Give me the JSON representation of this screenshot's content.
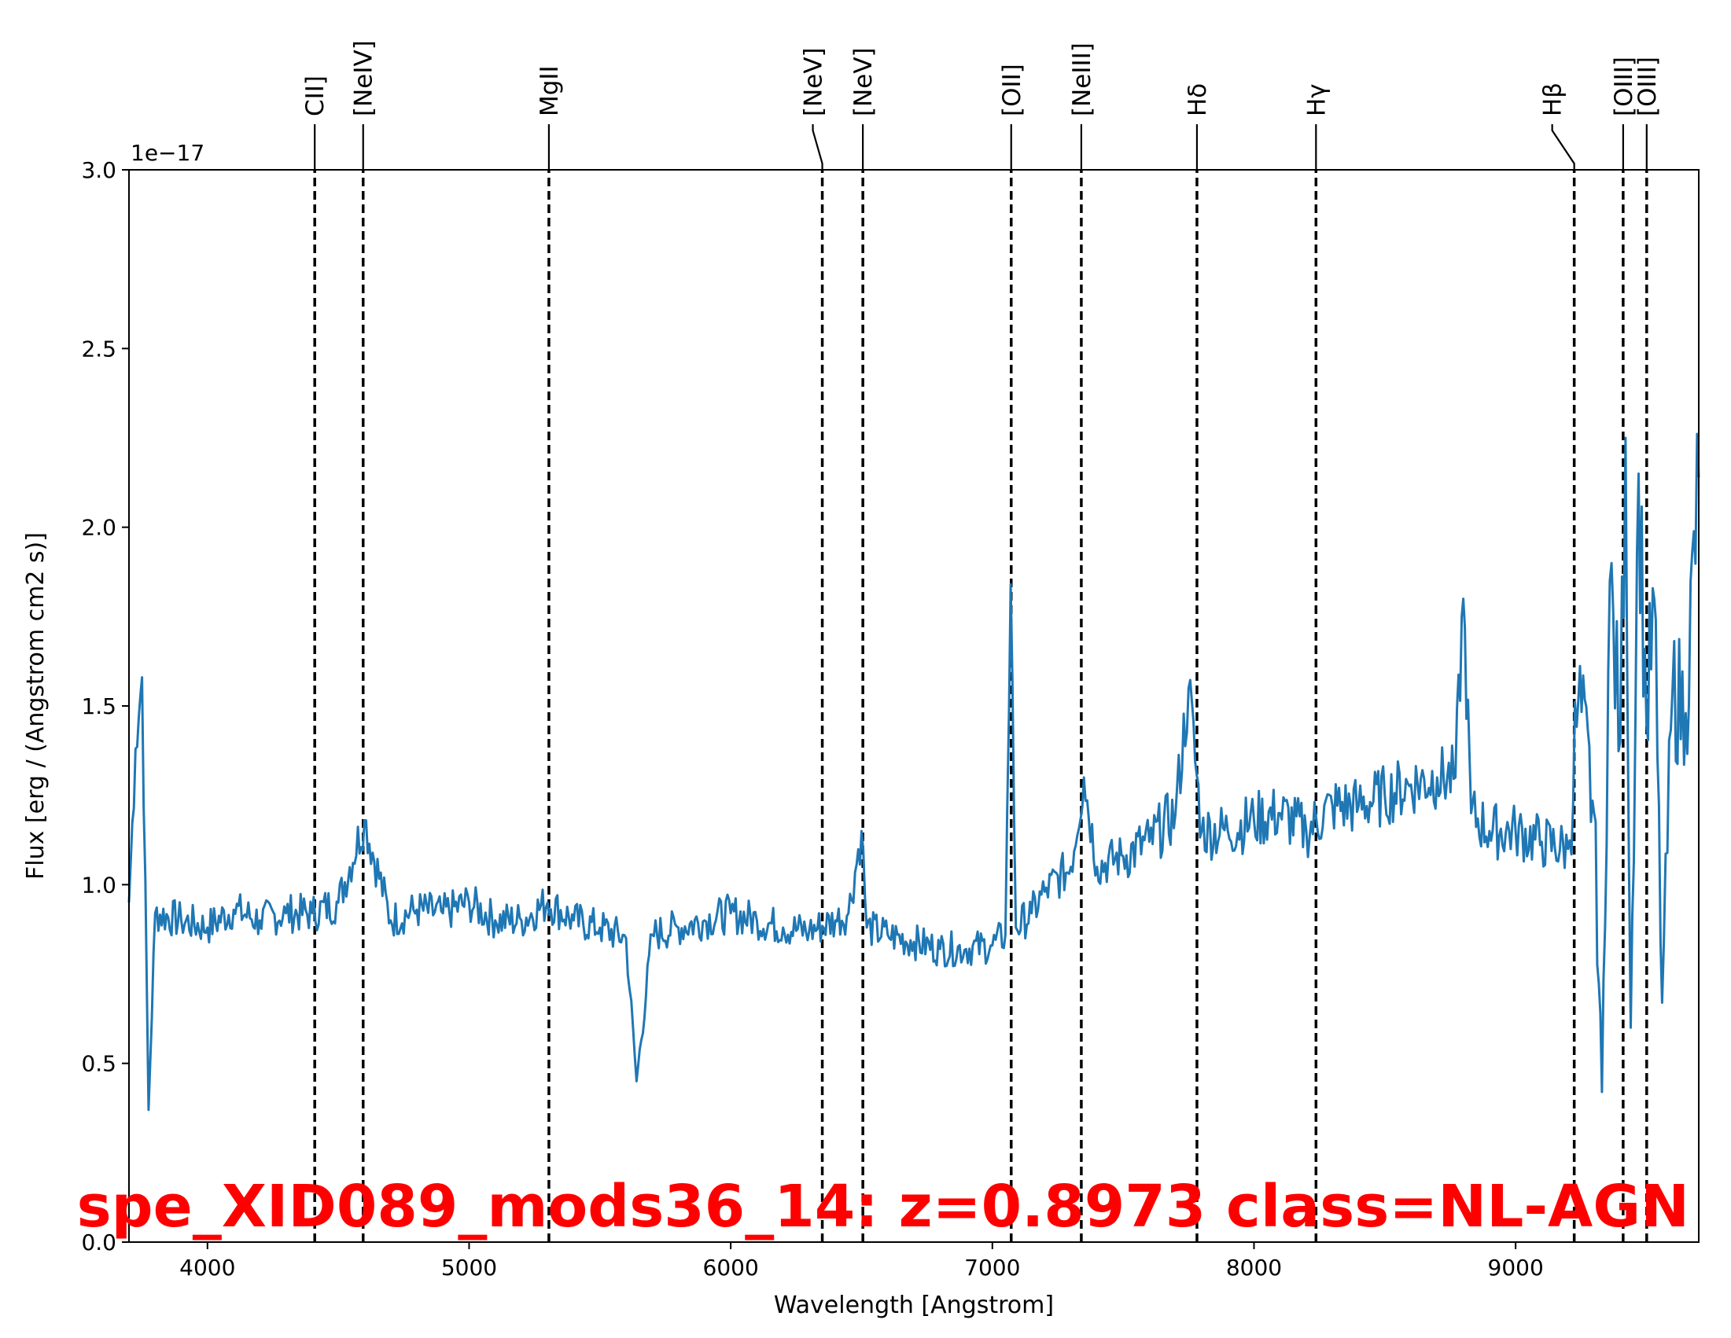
{
  "chart_data": {
    "type": "line",
    "title": "spe_XID089_mods36_14: z=0.8973 class=NL-AGN",
    "title_color": "#ff0000",
    "xlabel": "Wavelength [Angstrom]",
    "ylabel": "Flux [erg / (Angstrom cm2 s)]",
    "y_offset_label": "1e−17",
    "xlim": [
      3700,
      9700
    ],
    "ylim": [
      0.0,
      3.0
    ],
    "x_ticks": [
      4000,
      5000,
      6000,
      7000,
      8000,
      9000
    ],
    "x_tick_labels": [
      "4000",
      "5000",
      "6000",
      "7000",
      "8000",
      "9000"
    ],
    "y_ticks": [
      0.0,
      0.5,
      1.0,
      1.5,
      2.0,
      2.5,
      3.0
    ],
    "y_tick_labels": [
      "0.0",
      "0.5",
      "1.0",
      "1.5",
      "2.0",
      "2.5",
      "3.0"
    ],
    "grid": false,
    "series": [
      {
        "color": "#1f77b4",
        "x": [
          3700,
          3725,
          3750,
          3775,
          3800,
          3900,
          4000,
          4100,
          4200,
          4300,
          4400,
          4500,
          4600,
          4700,
          4800,
          4900,
          5000,
          5100,
          5200,
          5300,
          5400,
          5500,
          5600,
          5640,
          5700,
          5800,
          5900,
          6000,
          6100,
          6200,
          6300,
          6400,
          6450,
          6500,
          6520,
          6600,
          6700,
          6800,
          6900,
          7000,
          7050,
          7070,
          7090,
          7150,
          7200,
          7300,
          7350,
          7400,
          7500,
          7600,
          7700,
          7750,
          7800,
          7900,
          8000,
          8100,
          8200,
          8300,
          8400,
          8500,
          8600,
          8700,
          8770,
          8800,
          8830,
          8900,
          9000,
          9100,
          9200,
          9240,
          9300,
          9330,
          9360,
          9400,
          9420,
          9440,
          9470,
          9500,
          9530,
          9560,
          9600,
          9650,
          9700
        ],
        "y": [
          0.95,
          1.38,
          1.58,
          0.37,
          0.92,
          0.9,
          0.88,
          0.93,
          0.9,
          0.92,
          0.92,
          0.95,
          1.18,
          0.9,
          0.93,
          0.92,
          0.95,
          0.9,
          0.9,
          0.95,
          0.9,
          0.88,
          0.85,
          0.45,
          0.86,
          0.88,
          0.9,
          0.92,
          0.9,
          0.88,
          0.87,
          0.9,
          0.92,
          1.15,
          0.88,
          0.86,
          0.84,
          0.82,
          0.82,
          0.83,
          0.86,
          1.84,
          0.88,
          0.92,
          0.98,
          1.05,
          1.3,
          1.05,
          1.08,
          1.12,
          1.2,
          1.55,
          1.15,
          1.15,
          1.18,
          1.2,
          1.15,
          1.22,
          1.22,
          1.25,
          1.28,
          1.3,
          1.3,
          1.8,
          1.2,
          1.15,
          1.15,
          1.12,
          1.1,
          1.52,
          1.2,
          0.42,
          1.85,
          1.4,
          2.25,
          0.6,
          2.15,
          1.45,
          1.8,
          0.67,
          1.55,
          1.48,
          2.14
        ]
      }
    ],
    "line_markers": [
      {
        "label": "CII]",
        "wavelength": 4410
      },
      {
        "label": "[NeIV]",
        "wavelength": 4595
      },
      {
        "label": "MgII",
        "wavelength": 5305
      },
      {
        "label": "[NeV]",
        "wavelength": 6350
      },
      {
        "label": "[NeV]",
        "wavelength": 6505
      },
      {
        "label": "[OII]",
        "wavelength": 7072
      },
      {
        "label": "[NeIII]",
        "wavelength": 7340
      },
      {
        "label": "Hδ",
        "wavelength": 7782
      },
      {
        "label": "Hγ",
        "wavelength": 8237
      },
      {
        "label": "Hβ",
        "wavelength": 9224
      },
      {
        "label": "[OIII]",
        "wavelength": 9411
      },
      {
        "label": "[OIII]",
        "wavelength": 9501
      }
    ]
  }
}
